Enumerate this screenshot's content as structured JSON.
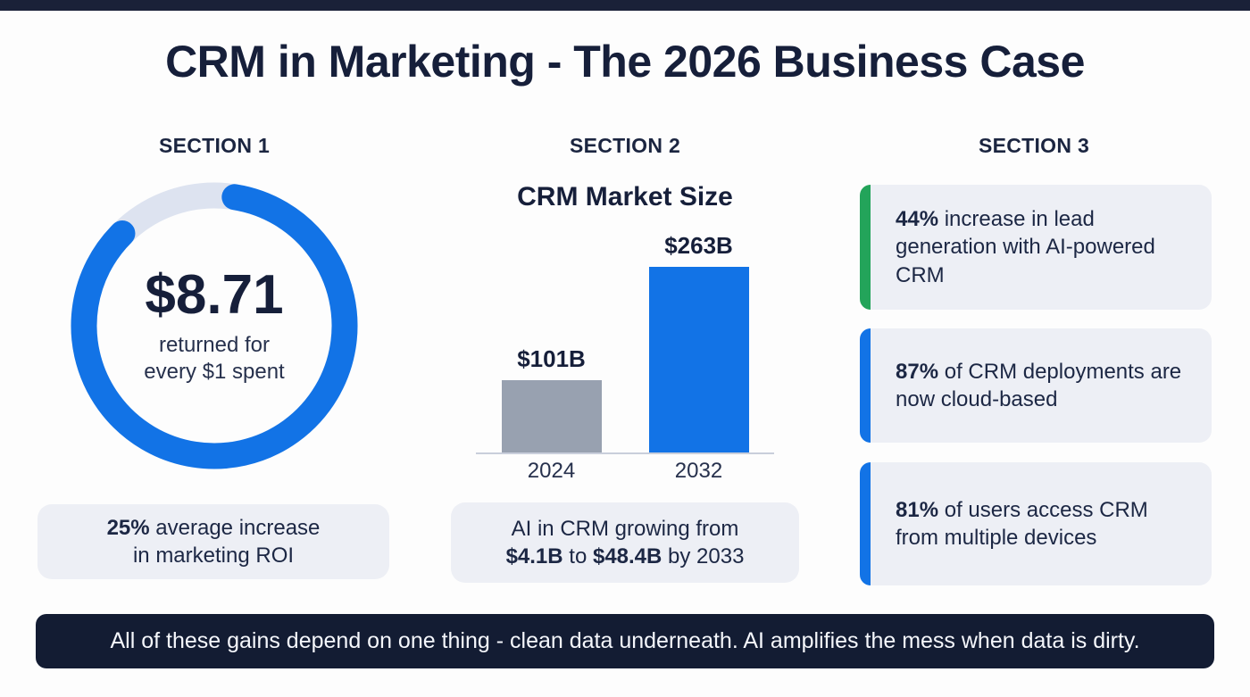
{
  "header": {
    "title": "CRM in Marketing - The 2026 Business Case"
  },
  "colors": {
    "navy": "#161f3a",
    "blue": "#1273e6",
    "gray_bar": "#98a1b0",
    "green": "#23a45a",
    "card_bg": "#edeff5",
    "donut_track": "#dde3f0",
    "footer_bg": "#131c33"
  },
  "section1": {
    "label": "SECTION 1",
    "card_bold": "25%",
    "card_text1": " average increase",
    "card_text2": "in marketing ROI"
  },
  "section2": {
    "label": "SECTION 2",
    "card_line1": "AI in CRM growing from",
    "card_bold1": "$4.1B",
    "card_mid": " to ",
    "card_bold2": "$48.4B",
    "card_end": " by 2033"
  },
  "section3": {
    "label": "SECTION 3",
    "cards": [
      {
        "bold": "44%",
        "text": " increase in lead generation with AI-powered CRM",
        "accent": "#23a45a"
      },
      {
        "bold": "87%",
        "text": " of CRM deployments are now cloud-based",
        "accent": "#1273e6"
      },
      {
        "bold": "81%",
        "text": " of users access CRM from multiple devices",
        "accent": "#1273e6"
      }
    ]
  },
  "footer": {
    "text": "All of these gains depend on one thing - clean data underneath. AI amplifies the mess when data is dirty."
  },
  "chart_data": [
    {
      "type": "donut",
      "value_label": "$8.71",
      "caption_line1": "returned for",
      "caption_line2": "every $1 spent",
      "filled_percent": 85,
      "colors": {
        "filled": "#1273e6",
        "track": "#dde3f0"
      }
    },
    {
      "type": "bar",
      "title": "CRM Market Size",
      "categories": [
        "2024",
        "2032"
      ],
      "values": [
        101,
        263
      ],
      "value_labels": [
        "$101B",
        "$263B"
      ],
      "bar_colors": [
        "#98a1b0",
        "#1273e6"
      ],
      "ylim": [
        0,
        280
      ],
      "grid": false,
      "legend": false
    }
  ]
}
